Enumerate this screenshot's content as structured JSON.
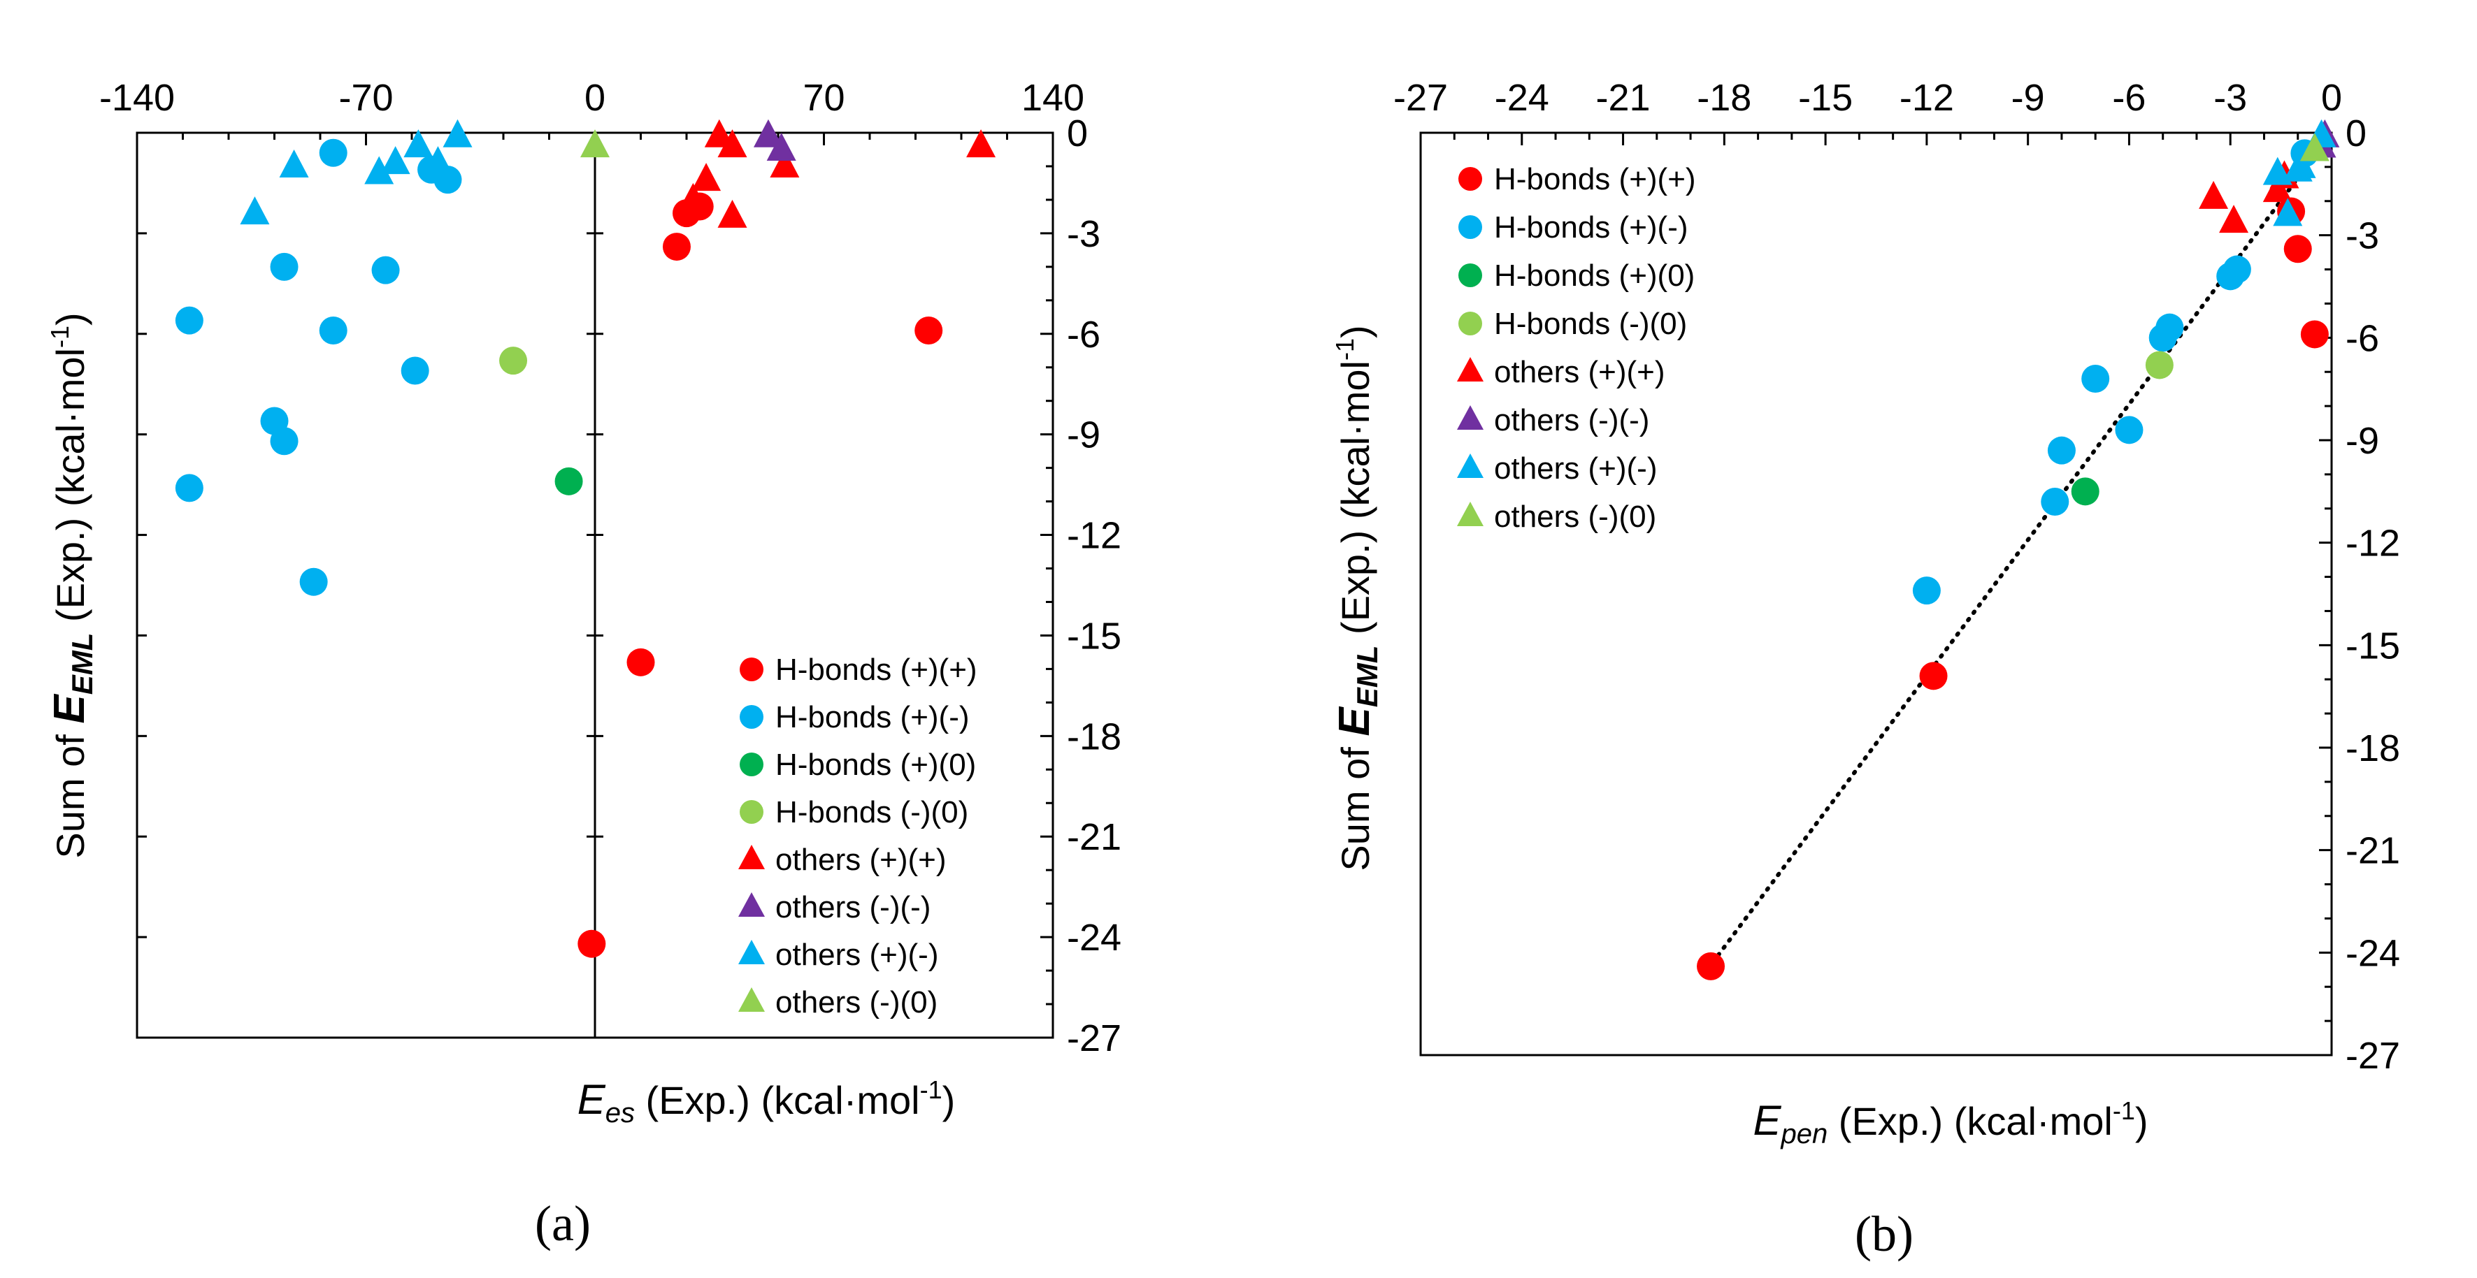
{
  "chart_data": [
    {
      "type": "scatter",
      "panel_label": "(a)",
      "title": "",
      "xlabel_main": "E",
      "xlabel_sub": "es",
      "xlabel_rest": " (Exp.)   (kcal·mol",
      "xlabel_sup": "-1",
      "xlabel_end": ")",
      "ylabel_main": "Sum of ",
      "ylabel_E": "E",
      "ylabel_sub": "EML",
      "ylabel_rest": "  (Exp.)  (kcal·mol",
      "ylabel_sup": "-1",
      "ylabel_end": ")",
      "xlim": [
        -140,
        140
      ],
      "ylim": [
        -27,
        0
      ],
      "x_ticks": [
        -140,
        -70,
        0,
        70,
        140
      ],
      "x_tick_labels": [
        "-140",
        "-70",
        "0",
        "70",
        "140"
      ],
      "y_ticks": [
        0,
        -3,
        -6,
        -9,
        -12,
        -15,
        -18,
        -21,
        -24,
        -27
      ],
      "y_tick_labels": [
        "0",
        "-3",
        "-6",
        "-9",
        "-12",
        "-15",
        "-18",
        "-21",
        "-24",
        "-27"
      ],
      "legend_position": "bottom-right",
      "vertical_zero_line": true,
      "series": [
        {
          "name": "H-bonds (+)(+)",
          "marker": "circle",
          "color": "#ff0000",
          "points": [
            [
              25,
              -3.4
            ],
            [
              28,
              -2.4
            ],
            [
              32,
              -2.2
            ],
            [
              102,
              -5.9
            ],
            [
              14,
              -15.8
            ],
            [
              -1,
              -24.2
            ]
          ]
        },
        {
          "name": "H-bonds (+)(-)",
          "marker": "circle",
          "color": "#00b0f0",
          "points": [
            [
              -80,
              -0.6
            ],
            [
              -50,
              -1.1
            ],
            [
              -45,
              -1.4
            ],
            [
              -95,
              -4
            ],
            [
              -64,
              -4.1
            ],
            [
              -124,
              -5.6
            ],
            [
              -80,
              -5.9
            ],
            [
              -55,
              -7.1
            ],
            [
              -98,
              -8.6
            ],
            [
              -95,
              -9.2
            ],
            [
              -124,
              -10.6
            ],
            [
              -86,
              -13.4
            ]
          ]
        },
        {
          "name": "H-bonds (+)(0)",
          "marker": "circle",
          "color": "#00b050",
          "points": [
            [
              -8,
              -10.4
            ]
          ]
        },
        {
          "name": "H-bonds (-)(0)",
          "marker": "circle",
          "color": "#92d050",
          "points": [
            [
              -25,
              -6.8
            ]
          ]
        },
        {
          "name": "others (+)(+)",
          "marker": "triangle",
          "color": "#ff0000",
          "points": [
            [
              38,
              -0.1
            ],
            [
              42,
              -0.4
            ],
            [
              58,
              -1.0
            ],
            [
              34,
              -1.4
            ],
            [
              30,
              -2.0
            ],
            [
              42,
              -2.5
            ],
            [
              118,
              -0.4
            ]
          ]
        },
        {
          "name": "others (-)(-)",
          "marker": "triangle",
          "color": "#7030a0",
          "points": [
            [
              53,
              -0.1
            ],
            [
              57,
              -0.5
            ]
          ]
        },
        {
          "name": "others (+)(-)",
          "marker": "triangle",
          "color": "#00b0f0",
          "points": [
            [
              -42,
              -0.1
            ],
            [
              -54,
              -0.4
            ],
            [
              -48,
              -0.9
            ],
            [
              -61,
              -0.9
            ],
            [
              -66,
              -1.2
            ],
            [
              -92,
              -1.0
            ],
            [
              -104,
              -2.4
            ]
          ]
        },
        {
          "name": "others (-)(0)",
          "marker": "triangle",
          "color": "#92d050",
          "points": [
            [
              0,
              -0.4
            ]
          ]
        }
      ]
    },
    {
      "type": "scatter",
      "panel_label": "(b)",
      "title": "",
      "xlabel_main": "E",
      "xlabel_sub": "pen",
      "xlabel_rest": " (Exp.)   (kcal·mol",
      "xlabel_sup": "-1",
      "xlabel_end": ")",
      "ylabel_main": "Sum of ",
      "ylabel_E": "E",
      "ylabel_sub": "EML",
      "ylabel_rest": "  (Exp.)  (kcal·mol",
      "ylabel_sup": "-1",
      "ylabel_end": ")",
      "xlim": [
        -27,
        0
      ],
      "ylim": [
        -27,
        0
      ],
      "x_ticks": [
        -27,
        -24,
        -21,
        -18,
        -15,
        -12,
        -9,
        -6,
        -3,
        0
      ],
      "x_tick_labels": [
        "-27",
        "-24",
        "-21",
        "-18",
        "-15",
        "-12",
        "-9",
        "-6",
        "-3",
        "0"
      ],
      "y_ticks": [
        0,
        -3,
        -6,
        -9,
        -12,
        -15,
        -18,
        -21,
        -24,
        -27
      ],
      "y_tick_labels": [
        "0",
        "-3",
        "-6",
        "-9",
        "-12",
        "-15",
        "-18",
        "-21",
        "-24",
        "-27"
      ],
      "legend_position": "top-left",
      "fit_line": {
        "x": [
          -18.5,
          0
        ],
        "y": [
          -24.5,
          0
        ],
        "style": "dotted"
      },
      "series": [
        {
          "name": "H-bonds (+)(+)",
          "marker": "circle",
          "color": "#ff0000",
          "points": [
            [
              -1.2,
              -2.3
            ],
            [
              -1.0,
              -3.4
            ],
            [
              -0.5,
              -5.9
            ],
            [
              -11.8,
              -15.9
            ],
            [
              -18.4,
              -24.4
            ]
          ]
        },
        {
          "name": "H-bonds (+)(-)",
          "marker": "circle",
          "color": "#00b0f0",
          "points": [
            [
              -0.8,
              -0.6
            ],
            [
              -2.8,
              -4.0
            ],
            [
              -3.0,
              -4.2
            ],
            [
              -4.8,
              -5.7
            ],
            [
              -5.0,
              -6.0
            ],
            [
              -7.0,
              -7.2
            ],
            [
              -6.0,
              -8.7
            ],
            [
              -8.0,
              -9.3
            ],
            [
              -8.2,
              -10.8
            ],
            [
              -12.0,
              -13.4
            ]
          ]
        },
        {
          "name": "H-bonds (+)(0)",
          "marker": "circle",
          "color": "#00b050",
          "points": [
            [
              -7.3,
              -10.5
            ]
          ]
        },
        {
          "name": "H-bonds (-)(0)",
          "marker": "circle",
          "color": "#92d050",
          "points": [
            [
              -5.1,
              -6.8
            ]
          ]
        },
        {
          "name": "others (+)(+)",
          "marker": "triangle",
          "color": "#ff0000",
          "points": [
            [
              -3.5,
              -1.9
            ],
            [
              -2.9,
              -2.6
            ],
            [
              -1.6,
              -1.7
            ],
            [
              -1.4,
              -1.3
            ]
          ]
        },
        {
          "name": "others (-)(-)",
          "marker": "triangle",
          "color": "#7030a0",
          "points": [
            [
              -0.2,
              -0.1
            ],
            [
              -0.3,
              -0.4
            ]
          ]
        },
        {
          "name": "others (+)(-)",
          "marker": "triangle",
          "color": "#00b0f0",
          "points": [
            [
              -1.6,
              -1.2
            ],
            [
              -1.3,
              -2.4
            ],
            [
              -0.9,
              -1.0
            ],
            [
              -1.0,
              -1.1
            ],
            [
              -0.3,
              -0.1
            ]
          ]
        },
        {
          "name": "others (-)(0)",
          "marker": "triangle",
          "color": "#92d050",
          "points": [
            [
              -0.5,
              -0.5
            ]
          ]
        }
      ]
    }
  ]
}
